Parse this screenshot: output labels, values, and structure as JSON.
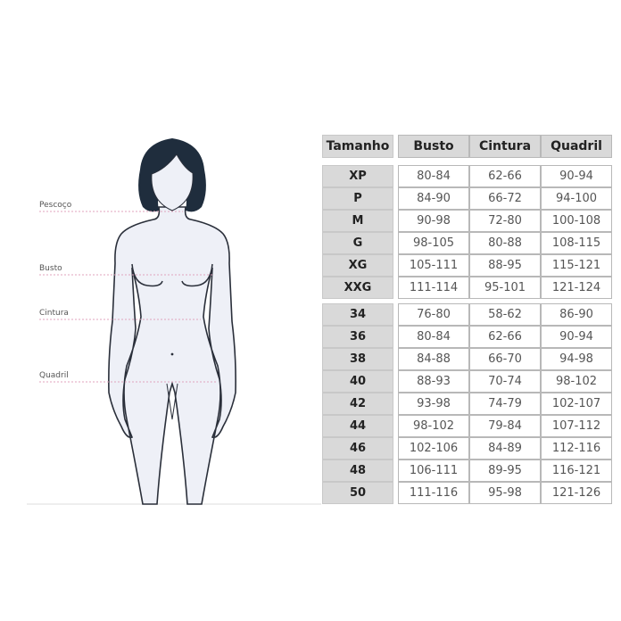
{
  "measurement_labels": {
    "neck": "Pescoço",
    "bust": "Busto",
    "waist": "Cintura",
    "hip": "Quadril"
  },
  "table": {
    "headers": [
      "Tamanho",
      "Busto",
      "Cintura",
      "Quadril"
    ],
    "letter_sizes": [
      [
        "XP",
        "80-84",
        "62-66",
        "90-94"
      ],
      [
        "P",
        "84-90",
        "66-72",
        "94-100"
      ],
      [
        "M",
        "90-98",
        "72-80",
        "100-108"
      ],
      [
        "G",
        "98-105",
        "80-88",
        "108-115"
      ],
      [
        "XG",
        "105-111",
        "88-95",
        "115-121"
      ],
      [
        "XXG",
        "111-114",
        "95-101",
        "121-124"
      ]
    ],
    "numeric_sizes": [
      [
        "34",
        "76-80",
        "58-62",
        "86-90"
      ],
      [
        "36",
        "80-84",
        "62-66",
        "90-94"
      ],
      [
        "38",
        "84-88",
        "66-70",
        "94-98"
      ],
      [
        "40",
        "88-93",
        "70-74",
        "98-102"
      ],
      [
        "42",
        "93-98",
        "74-79",
        "102-107"
      ],
      [
        "44",
        "98-102",
        "79-84",
        "107-112"
      ],
      [
        "46",
        "102-106",
        "84-89",
        "112-116"
      ],
      [
        "48",
        "106-111",
        "89-95",
        "116-121"
      ],
      [
        "50",
        "111-116",
        "95-98",
        "121-126"
      ]
    ]
  },
  "colors": {
    "hair": "#1f2d3d",
    "body_fill": "#eef0f7",
    "outline": "#2a2f3a",
    "guide_line": "#e0a3bd",
    "header_bg": "#d9d9d9"
  }
}
